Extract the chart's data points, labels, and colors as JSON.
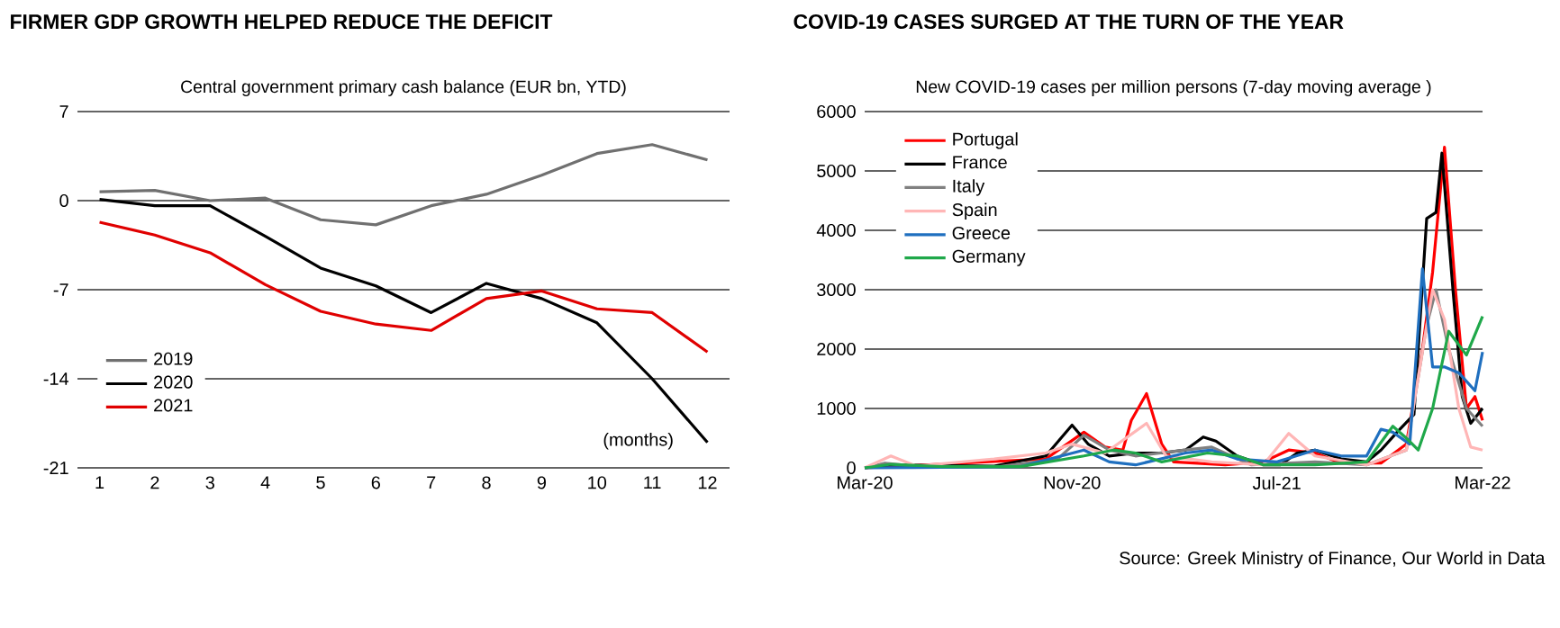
{
  "chart_data": [
    {
      "type": "line",
      "title": "FIRMER GDP GROWTH HELPED REDUCE THE DEFICIT",
      "subtitle": "Central government primary cash balance (EUR bn, YTD)",
      "categories": [
        "1",
        "2",
        "3",
        "4",
        "5",
        "6",
        "7",
        "8",
        "9",
        "10",
        "11",
        "12"
      ],
      "series": [
        {
          "name": "2019",
          "color": "#707070",
          "values": [
            0.7,
            0.8,
            0,
            0.2,
            -1.5,
            -1.9,
            -0.4,
            0.5,
            2.0,
            3.7,
            4.4,
            3.2
          ]
        },
        {
          "name": "2020",
          "color": "#000000",
          "values": [
            0.1,
            -0.4,
            -0.4,
            -2.8,
            -5.3,
            -6.7,
            -8.8,
            -6.5,
            -7.7,
            -9.6,
            -14.0,
            -19.0
          ]
        },
        {
          "name": "2021",
          "color": "#e00000",
          "values": [
            -1.7,
            -2.7,
            -4.1,
            -6.6,
            -8.7,
            -9.7,
            -10.2,
            -7.7,
            -7.1,
            -8.5,
            -8.8,
            -11.9
          ]
        }
      ],
      "ylim": [
        -21,
        7
      ],
      "yticks": [
        -21,
        -14,
        -7,
        0,
        7
      ],
      "grid": "y",
      "legend": "bottom left",
      "marker": "none",
      "annotations": [
        "(months)"
      ]
    },
    {
      "type": "line",
      "title": "COVID-19 CASES SURGED AT THE TURN OF THE YEAR",
      "subtitle": "New COVID-19 cases per million persons (7-day moving average )",
      "series": [
        {
          "name": "Portugal",
          "color": "#ff0000",
          "x": [
            "2020-03-01",
            "2020-10-01",
            "2020-11-15",
            "2020-12-10",
            "2020-12-31",
            "2021-01-10",
            "2021-01-28",
            "2021-02-15",
            "2021-03-01",
            "2021-05-01",
            "2021-06-15",
            "2021-07-15",
            "2021-08-15",
            "2021-09-15",
            "2021-11-01",
            "2021-12-01",
            "2021-12-20",
            "2022-01-01",
            "2022-01-15",
            "2022-01-28",
            "2022-02-10",
            "2022-02-20",
            "2022-03-01"
          ],
          "values": [
            0,
            150,
            600,
            350,
            300,
            800,
            1250,
            400,
            100,
            50,
            100,
            300,
            250,
            80,
            80,
            400,
            2000,
            3300,
            5400,
            3000,
            1000,
            1200,
            800
          ]
        },
        {
          "name": "France",
          "color": "#000000",
          "x": [
            "2020-03-01",
            "2020-04-01",
            "2020-08-01",
            "2020-10-01",
            "2020-11-01",
            "2020-11-20",
            "2020-12-15",
            "2021-01-15",
            "2021-02-15",
            "2021-03-15",
            "2021-04-05",
            "2021-04-20",
            "2021-05-15",
            "2021-06-15",
            "2021-07-05",
            "2021-07-25",
            "2021-08-15",
            "2021-09-15",
            "2021-10-15",
            "2021-11-01",
            "2021-11-20",
            "2021-12-10",
            "2021-12-25",
            "2022-01-05",
            "2022-01-12",
            "2022-01-25",
            "2022-02-05",
            "2022-02-15",
            "2022-03-01"
          ],
          "values": [
            0,
            50,
            30,
            200,
            720,
            400,
            200,
            250,
            250,
            300,
            520,
            450,
            200,
            50,
            50,
            250,
            300,
            150,
            100,
            300,
            600,
            900,
            4200,
            4300,
            5300,
            3000,
            1200,
            750,
            1000
          ]
        },
        {
          "name": "Italy",
          "color": "#808080",
          "x": [
            "2020-03-01",
            "2020-03-25",
            "2020-05-01",
            "2020-08-01",
            "2020-10-15",
            "2020-11-15",
            "2020-12-15",
            "2021-01-15",
            "2021-03-15",
            "2021-04-15",
            "2021-06-01",
            "2021-08-15",
            "2021-10-15",
            "2021-12-01",
            "2021-12-25",
            "2022-01-05",
            "2022-01-20",
            "2022-02-10",
            "2022-03-01"
          ],
          "values": [
            0,
            80,
            30,
            10,
            150,
            550,
            300,
            200,
            300,
            350,
            50,
            100,
            50,
            300,
            2400,
            3000,
            2000,
            1000,
            700
          ]
        },
        {
          "name": "Spain",
          "color": "#ffb6b6",
          "x": [
            "2020-03-01",
            "2020-04-01",
            "2020-05-01",
            "2020-08-01",
            "2020-10-01",
            "2020-11-01",
            "2020-12-10",
            "2021-01-28",
            "2021-02-20",
            "2021-04-15",
            "2021-06-15",
            "2021-07-15",
            "2021-08-15",
            "2021-10-15",
            "2021-12-01",
            "2022-01-01",
            "2022-01-15",
            "2022-02-01",
            "2022-02-15",
            "2022-03-01"
          ],
          "values": [
            0,
            200,
            30,
            150,
            250,
            400,
            250,
            750,
            200,
            100,
            50,
            580,
            200,
            50,
            300,
            3000,
            2500,
            1000,
            350,
            300
          ]
        },
        {
          "name": "Greece",
          "color": "#1f6fbf",
          "x": [
            "2020-03-01",
            "2020-06-01",
            "2020-09-01",
            "2020-11-15",
            "2020-12-15",
            "2021-01-15",
            "2021-03-15",
            "2021-04-15",
            "2021-05-15",
            "2021-07-01",
            "2021-08-15",
            "2021-09-15",
            "2021-10-15",
            "2021-11-01",
            "2021-11-15",
            "2021-12-05",
            "2021-12-20",
            "2022-01-01",
            "2022-01-15",
            "2022-02-01",
            "2022-02-20",
            "2022-03-01"
          ],
          "values": [
            0,
            10,
            20,
            300,
            100,
            50,
            250,
            300,
            150,
            100,
            300,
            200,
            200,
            650,
            600,
            400,
            3350,
            1700,
            1700,
            1600,
            1300,
            1950
          ]
        },
        {
          "name": "Germany",
          "color": "#1fa84a",
          "x": [
            "2020-03-01",
            "2020-04-01",
            "2020-06-01",
            "2020-09-01",
            "2020-11-15",
            "2020-12-20",
            "2021-01-15",
            "2021-02-15",
            "2021-04-10",
            "2021-05-15",
            "2021-06-15",
            "2021-08-15",
            "2021-10-15",
            "2021-11-15",
            "2021-12-01",
            "2021-12-15",
            "2022-01-01",
            "2022-01-20",
            "2022-02-10",
            "2022-03-01"
          ],
          "values": [
            0,
            60,
            20,
            20,
            200,
            300,
            250,
            100,
            250,
            200,
            50,
            50,
            100,
            700,
            500,
            300,
            1000,
            2300,
            1900,
            2550
          ]
        }
      ],
      "xlim": [
        "2020-03-01",
        "2022-03-01"
      ],
      "xticks": [
        {
          "value": "2020-03-01",
          "label": "Mar-20"
        },
        {
          "value": "2020-11-01",
          "label": "Nov-20"
        },
        {
          "value": "2021-07-01",
          "label": "Jul-21"
        },
        {
          "value": "2022-03-01",
          "label": "Mar-22"
        }
      ],
      "ylim": [
        0,
        6000
      ],
      "yticks": [
        0,
        1000,
        2000,
        3000,
        4000,
        5000,
        6000
      ],
      "grid": "y",
      "legend": "top left",
      "marker": "none",
      "annotations": [
        "Source: Greek Ministry of Finance, Our World in Data"
      ]
    }
  ]
}
